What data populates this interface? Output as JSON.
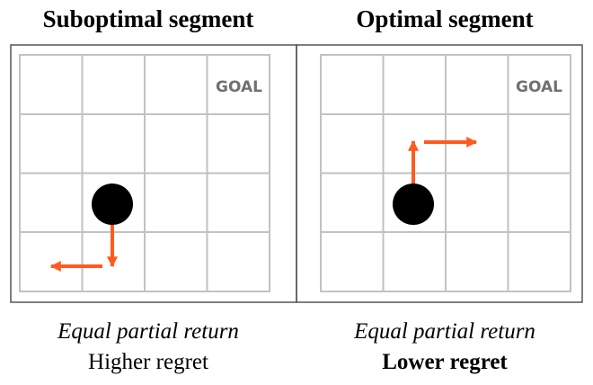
{
  "panels": [
    {
      "title": "Suboptimal segment",
      "goal_label": "GOAL",
      "caption_return": "Equal partial return",
      "caption_regret": "Higher regret",
      "grid": {
        "rows": 4,
        "cols": 4
      },
      "agent_cell": {
        "row": 2,
        "col": 1
      },
      "goal_cell": {
        "row": 0,
        "col": 3
      },
      "moves": [
        "down",
        "left"
      ]
    },
    {
      "title": "Optimal segment",
      "goal_label": "GOAL",
      "caption_return": "Equal partial return",
      "caption_regret": "Lower regret",
      "grid": {
        "rows": 4,
        "cols": 4
      },
      "agent_cell": {
        "row": 2,
        "col": 1
      },
      "goal_cell": {
        "row": 0,
        "col": 3
      },
      "moves": [
        "up",
        "right"
      ]
    }
  ],
  "colors": {
    "grid_line": "#c2c2c2",
    "frame": "#555555",
    "agent": "#000000",
    "arrow": "#ff5a1f",
    "goal_text": "#707070"
  }
}
